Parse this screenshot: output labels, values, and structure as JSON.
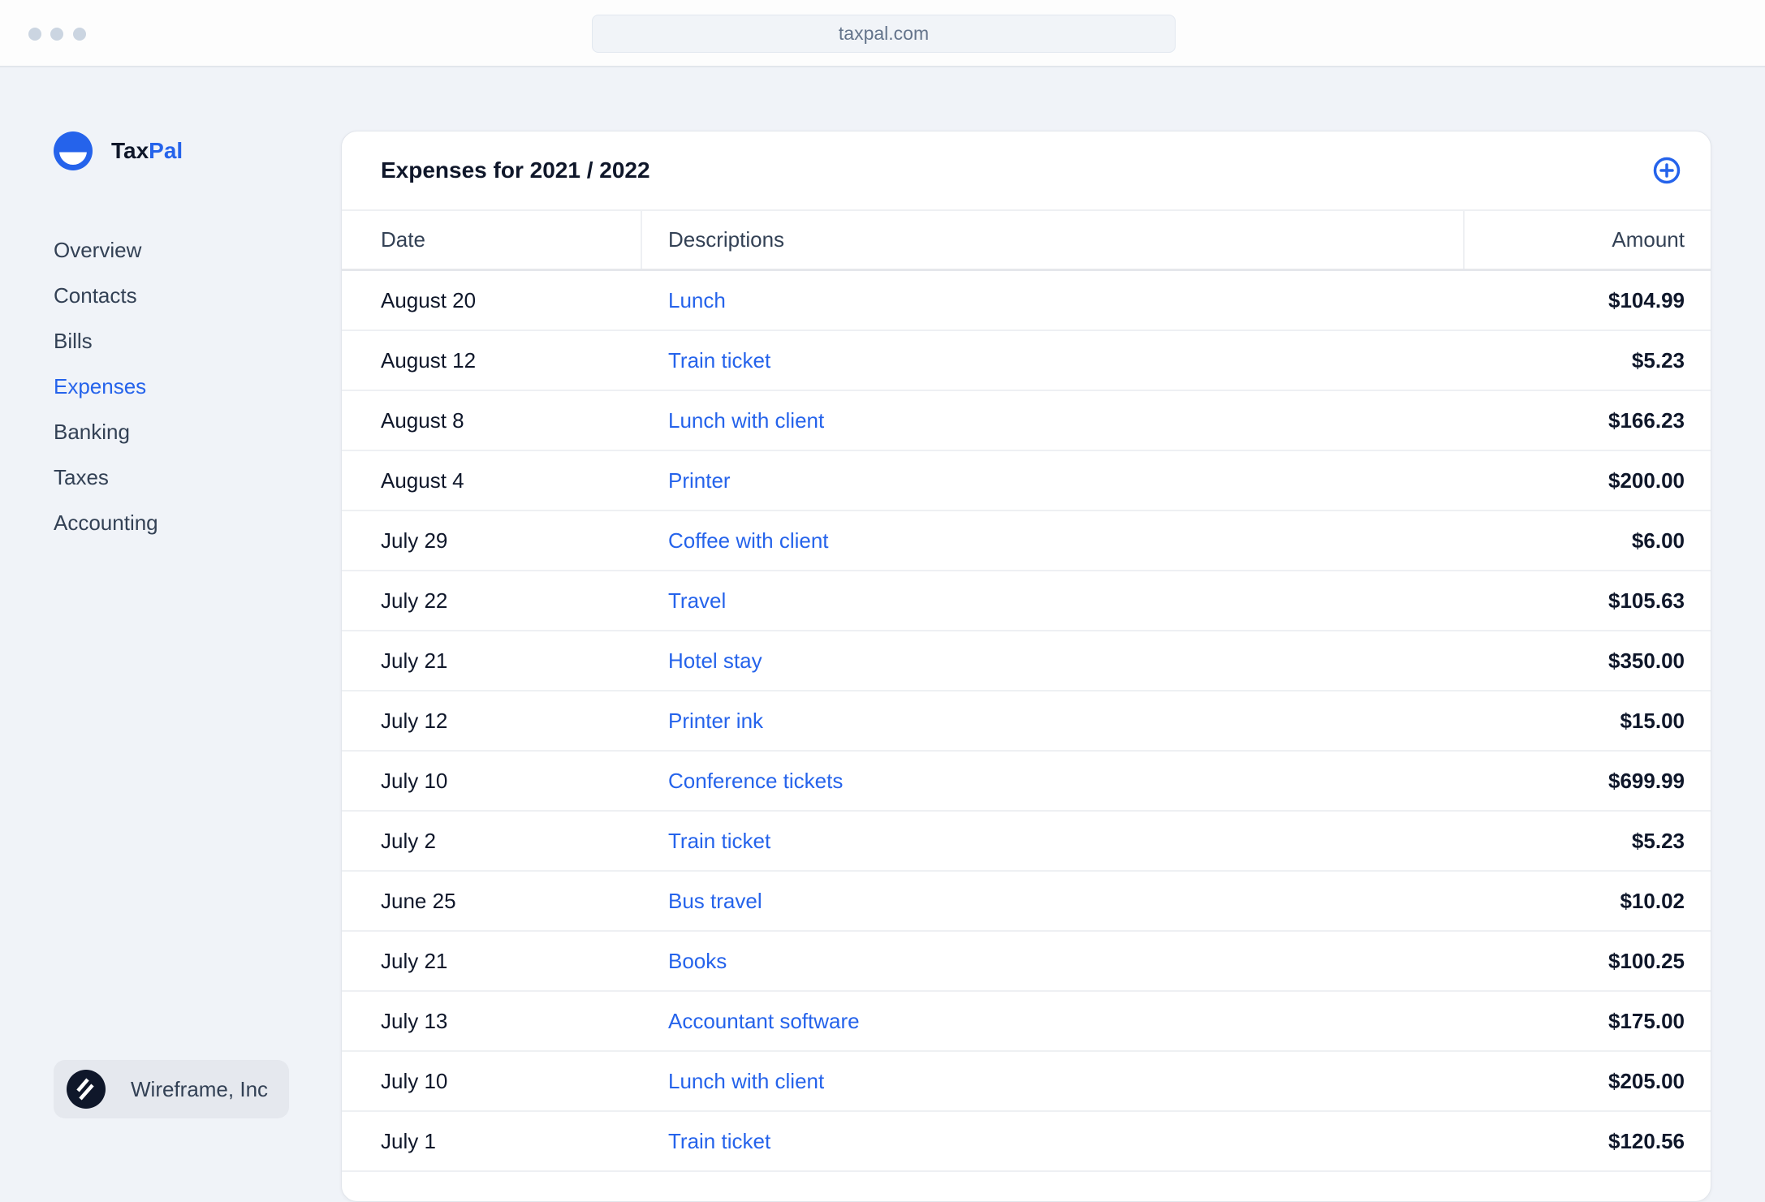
{
  "browser": {
    "url": "taxpal.com"
  },
  "brand": {
    "part1": "Tax",
    "part2": "Pal",
    "accent": "#2563eb"
  },
  "sidebar": {
    "items": [
      {
        "label": "Overview"
      },
      {
        "label": "Contacts"
      },
      {
        "label": "Bills"
      },
      {
        "label": "Expenses",
        "active": true
      },
      {
        "label": "Banking"
      },
      {
        "label": "Taxes"
      },
      {
        "label": "Accounting"
      }
    ],
    "org": {
      "name": "Wireframe, Inc"
    }
  },
  "main": {
    "title": "Expenses for 2021 / 2022",
    "add_icon": "plus-circle-icon",
    "columns": [
      "Date",
      "Descriptions",
      "Amount"
    ],
    "rows": [
      {
        "date": "August 20",
        "desc": "Lunch",
        "amount": "$104.99"
      },
      {
        "date": "August 12",
        "desc": "Train ticket",
        "amount": "$5.23"
      },
      {
        "date": "August 8",
        "desc": "Lunch with client",
        "amount": "$166.23"
      },
      {
        "date": "August 4",
        "desc": "Printer",
        "amount": "$200.00"
      },
      {
        "date": "July 29",
        "desc": "Coffee with client",
        "amount": "$6.00"
      },
      {
        "date": "July 22",
        "desc": "Travel",
        "amount": "$105.63"
      },
      {
        "date": "July 21",
        "desc": "Hotel stay",
        "amount": "$350.00"
      },
      {
        "date": "July 12",
        "desc": "Printer ink",
        "amount": "$15.00"
      },
      {
        "date": "July 10",
        "desc": "Conference tickets",
        "amount": "$699.99"
      },
      {
        "date": "July 2",
        "desc": "Train ticket",
        "amount": "$5.23"
      },
      {
        "date": "June 25",
        "desc": "Bus travel",
        "amount": "$10.02"
      },
      {
        "date": "July 21",
        "desc": "Books",
        "amount": "$100.25"
      },
      {
        "date": "July 13",
        "desc": "Accountant software",
        "amount": "$175.00"
      },
      {
        "date": "July 10",
        "desc": "Lunch with client",
        "amount": "$205.00"
      },
      {
        "date": "July 1",
        "desc": "Train ticket",
        "amount": "$120.56"
      }
    ]
  }
}
